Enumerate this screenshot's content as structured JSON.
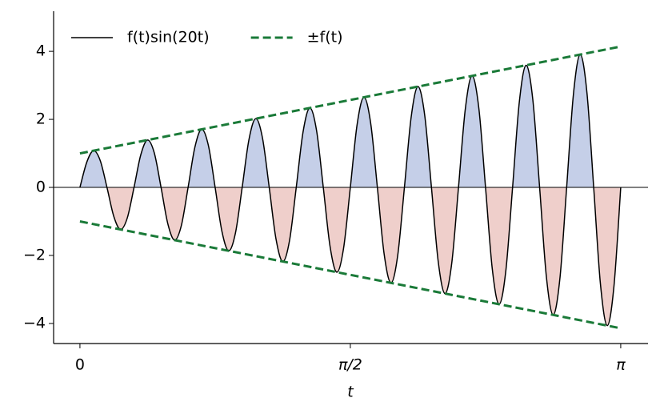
{
  "chart_data": {
    "type": "line",
    "xlabel": "t",
    "xlim": [
      -0.153,
      3.3
    ],
    "ylim": [
      -4.59,
      5.18
    ],
    "xticks": [
      0,
      {
        "value": 1.5708,
        "label": "π/2"
      },
      {
        "value": 3.1416,
        "label": "π"
      }
    ],
    "yticks": [
      {
        "value": -4,
        "label": "−4"
      },
      {
        "value": -2,
        "label": "−2"
      },
      0,
      2,
      4
    ],
    "zero_line": true,
    "legend": "upper left",
    "fill_above_color": "#c5cfe8",
    "fill_below_color": "#efcfcb",
    "series": [
      {
        "name": "f(t)sin(20t)",
        "color": "#000000",
        "style": "solid",
        "smooth": true,
        "fill": true,
        "x": [
          0,
          0.0393,
          0.0785,
          0.1178,
          0.1571,
          0.1963,
          0.2356,
          0.2749,
          0.3142,
          0.3534,
          0.3927,
          0.432,
          0.4712,
          0.5105,
          0.5498,
          0.589,
          0.6283,
          0.6676,
          0.7069,
          0.7461,
          0.7854,
          0.8247,
          0.8639,
          0.9032,
          0.9425,
          0.9817,
          1.021,
          1.0603,
          1.0996,
          1.1388,
          1.1781,
          1.2174,
          1.2566,
          1.2959,
          1.3352,
          1.3744,
          1.4137,
          1.453,
          1.4923,
          1.5315,
          1.5708,
          1.6101,
          1.6493,
          1.6886,
          1.7279,
          1.7671,
          1.8064,
          1.8457,
          1.885,
          1.9242,
          1.9635,
          2.0028,
          2.042,
          2.0813,
          2.1206,
          2.1598,
          2.1991,
          2.2384,
          2.2777,
          2.3169,
          2.3562,
          2.3955,
          2.4347,
          2.474,
          2.5133,
          2.5525,
          2.5918,
          2.6311,
          2.6704,
          2.7096,
          2.7489,
          2.7882,
          2.8274,
          2.8667,
          2.906,
          2.9452,
          2.9845,
          3.0238,
          3.0631,
          3.1023,
          3.1416
        ],
        "values": [
          0,
          0.735,
          1.079,
          0.79,
          0,
          -0.846,
          -1.236,
          -0.901,
          0,
          0.957,
          1.393,
          1.013,
          0,
          -1.068,
          -1.55,
          -1.124,
          0,
          1.179,
          1.707,
          1.235,
          0,
          -1.29,
          -1.864,
          -1.346,
          0,
          1.401,
          2.021,
          1.457,
          0,
          -1.512,
          -2.178,
          -1.568,
          0,
          1.623,
          2.335,
          1.679,
          0,
          -1.735,
          -2.492,
          -1.79,
          0,
          1.846,
          2.649,
          1.901,
          0,
          -1.957,
          -2.806,
          -2.012,
          0,
          2.068,
          2.964,
          2.123,
          0,
          -2.179,
          -3.121,
          -2.234,
          0,
          2.29,
          3.278,
          2.345,
          0,
          -2.401,
          -3.435,
          -2.456,
          0,
          2.512,
          3.592,
          2.568,
          0,
          -2.623,
          -3.749,
          -2.679,
          0,
          2.734,
          3.906,
          2.79,
          0,
          -2.845,
          -4.063,
          -2.901,
          0
        ]
      },
      {
        "name": "±f(t)",
        "color": "#1a7a38",
        "style": "dashed",
        "x": [
          0,
          3.1416
        ],
        "values": [
          1,
          4.1416
        ],
        "lower": [
          -1,
          -4.1416
        ]
      }
    ]
  }
}
